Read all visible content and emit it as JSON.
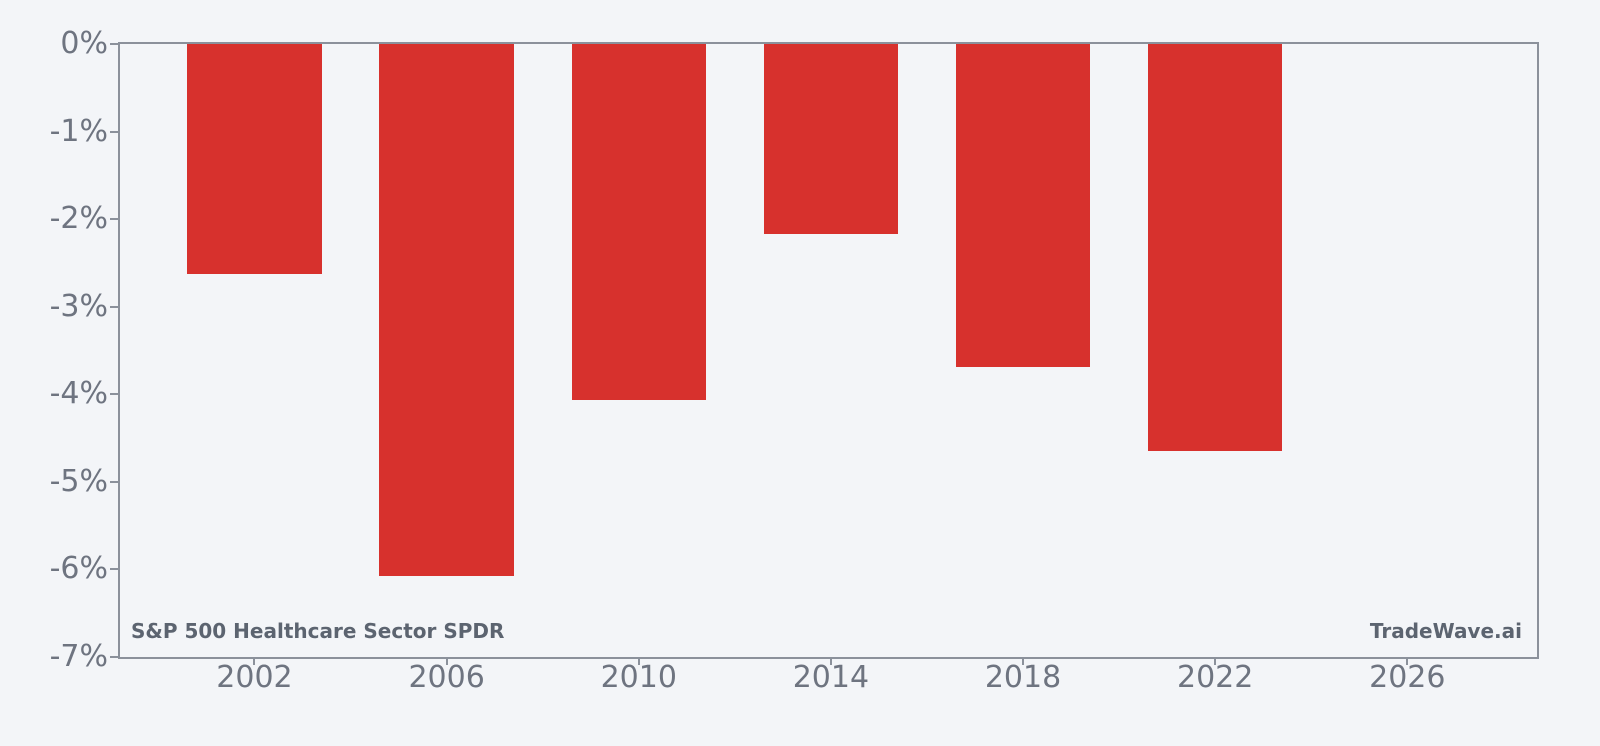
{
  "figure": {
    "background": "#f3f5f8",
    "frame_color": "#8b919b",
    "tick_color": "#8b919b",
    "tick_label_color": "#6e7480",
    "annotation_color": "#5c6470"
  },
  "labels": {
    "series_label": "S&P 500 Healthcare Sector SPDR",
    "watermark": "TradeWave.ai"
  },
  "chart_data": {
    "type": "bar",
    "title": "",
    "xlabel": "",
    "ylabel": "",
    "x": [
      2002,
      2006,
      2010,
      2014,
      2018,
      2022
    ],
    "values": [
      -2.63,
      -6.08,
      -4.06,
      -2.17,
      -3.69,
      -4.65
    ],
    "unit": "%",
    "bar_color": "#d7312d",
    "bar_width_years": 2.8,
    "xlim": [
      1999.2,
      2028.7
    ],
    "ylim": [
      -7,
      0
    ],
    "xticks": [
      2002,
      2006,
      2010,
      2014,
      2018,
      2022,
      2026
    ],
    "xtick_labels": [
      "2002",
      "2006",
      "2010",
      "2014",
      "2018",
      "2022",
      "2026"
    ],
    "yticks": [
      0,
      -1,
      -2,
      -3,
      -4,
      -5,
      -6,
      -7
    ],
    "ytick_labels": [
      "0%",
      "-1%",
      "-2%",
      "-3%",
      "-4%",
      "-5%",
      "-6%",
      "-7%"
    ],
    "grid": false,
    "legend_position": "none",
    "annotations": [
      {
        "text": "S&P 500 Healthcare Sector SPDR",
        "position": "bottom-left"
      },
      {
        "text": "TradeWave.ai",
        "position": "bottom-right"
      }
    ]
  }
}
